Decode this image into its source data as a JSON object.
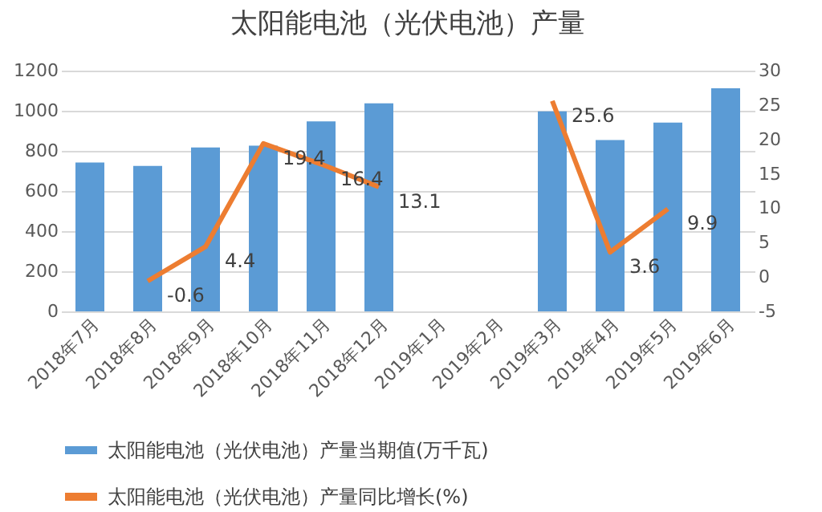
{
  "chart_data": {
    "type": "bar",
    "title": "太阳能电池（光伏电池）产量",
    "categories": [
      "2018年7月",
      "2018年8月",
      "2018年9月",
      "2018年10月",
      "2018年11月",
      "2018年12月",
      "2019年1月",
      "2019年2月",
      "2019年3月",
      "2019年4月",
      "2019年5月",
      "2019年6月"
    ],
    "series": [
      {
        "name": "太阳能电池（光伏电池）产量当期值(万千瓦)",
        "color": "#5b9bd5",
        "values": [
          742,
          725,
          817,
          826,
          947,
          1037,
          null,
          null,
          997,
          854,
          941,
          1112
        ]
      },
      {
        "name": "太阳能电池（光伏电池）产量同比增长(%)",
        "type": "line",
        "axis": "y2",
        "color": "#ed7d31",
        "values": [
          null,
          -0.6,
          4.4,
          19.4,
          16.4,
          13.1,
          null,
          null,
          25.6,
          3.6,
          9.9,
          null
        ],
        "value_labels": [
          null,
          "-0.6",
          "4.4",
          "19.4",
          "16.4",
          "13.1",
          null,
          null,
          "25.6",
          "3.6",
          "9.9",
          null
        ]
      }
    ],
    "ylim": [
      0,
      1200
    ],
    "yticks": [
      0,
      200,
      400,
      600,
      800,
      1000,
      1200
    ],
    "y2lim": [
      -5,
      30
    ],
    "y2ticks": [
      -5,
      0,
      5,
      10,
      15,
      20,
      25,
      30
    ],
    "grid": "y",
    "legend": "bottom"
  }
}
